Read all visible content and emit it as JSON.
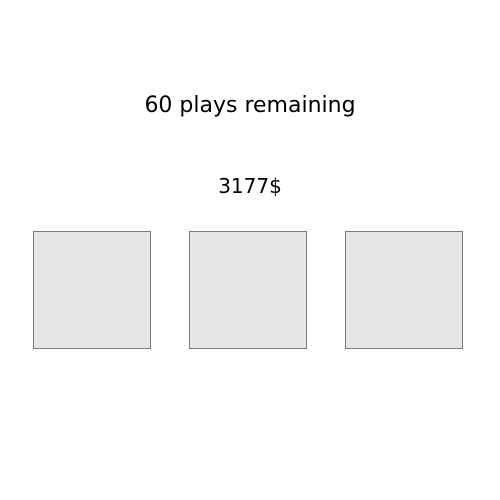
{
  "game": {
    "plays_remaining_text": "60 plays remaining",
    "balance_text": "3177$"
  },
  "cards": [
    {
      "id": "card-1",
      "face_up": false
    },
    {
      "id": "card-2",
      "face_up": false
    },
    {
      "id": "card-3",
      "face_up": false
    }
  ],
  "colors": {
    "card_fill": "#e6e6e6",
    "card_border": "#7a7a7a",
    "background": "#ffffff"
  }
}
